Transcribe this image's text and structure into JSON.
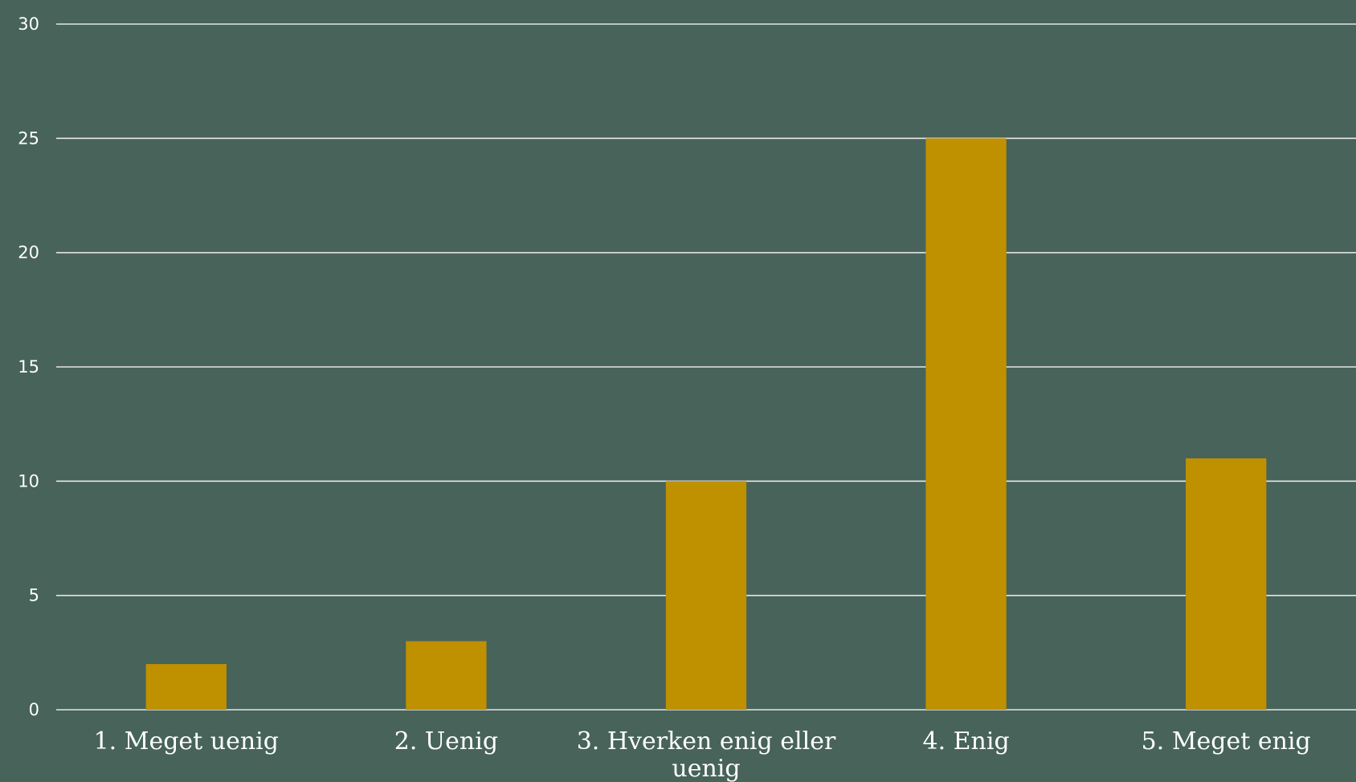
{
  "chart_data": {
    "type": "bar",
    "categories": [
      "1. Meget uenig",
      "2. Uenig",
      "3. Hverken enig eller uenig",
      "4. Enig",
      "5. Meget enig"
    ],
    "category_lines": [
      [
        "1. Meget uenig"
      ],
      [
        "2. Uenig"
      ],
      [
        "3. Hverken enig eller",
        "uenig"
      ],
      [
        "4. Enig"
      ],
      [
        "5. Meget enig"
      ]
    ],
    "values": [
      2,
      3,
      10,
      25,
      11
    ],
    "title": "",
    "xlabel": "",
    "ylabel": "",
    "ylim": [
      0,
      30
    ],
    "yticks": [
      0,
      5,
      10,
      15,
      20,
      25,
      30
    ],
    "grid": true,
    "legend": "none",
    "colors": {
      "background": "#47635A",
      "bar": "#BF9000",
      "grid": "#E6E6E6",
      "text": "#FFFFFF"
    }
  }
}
